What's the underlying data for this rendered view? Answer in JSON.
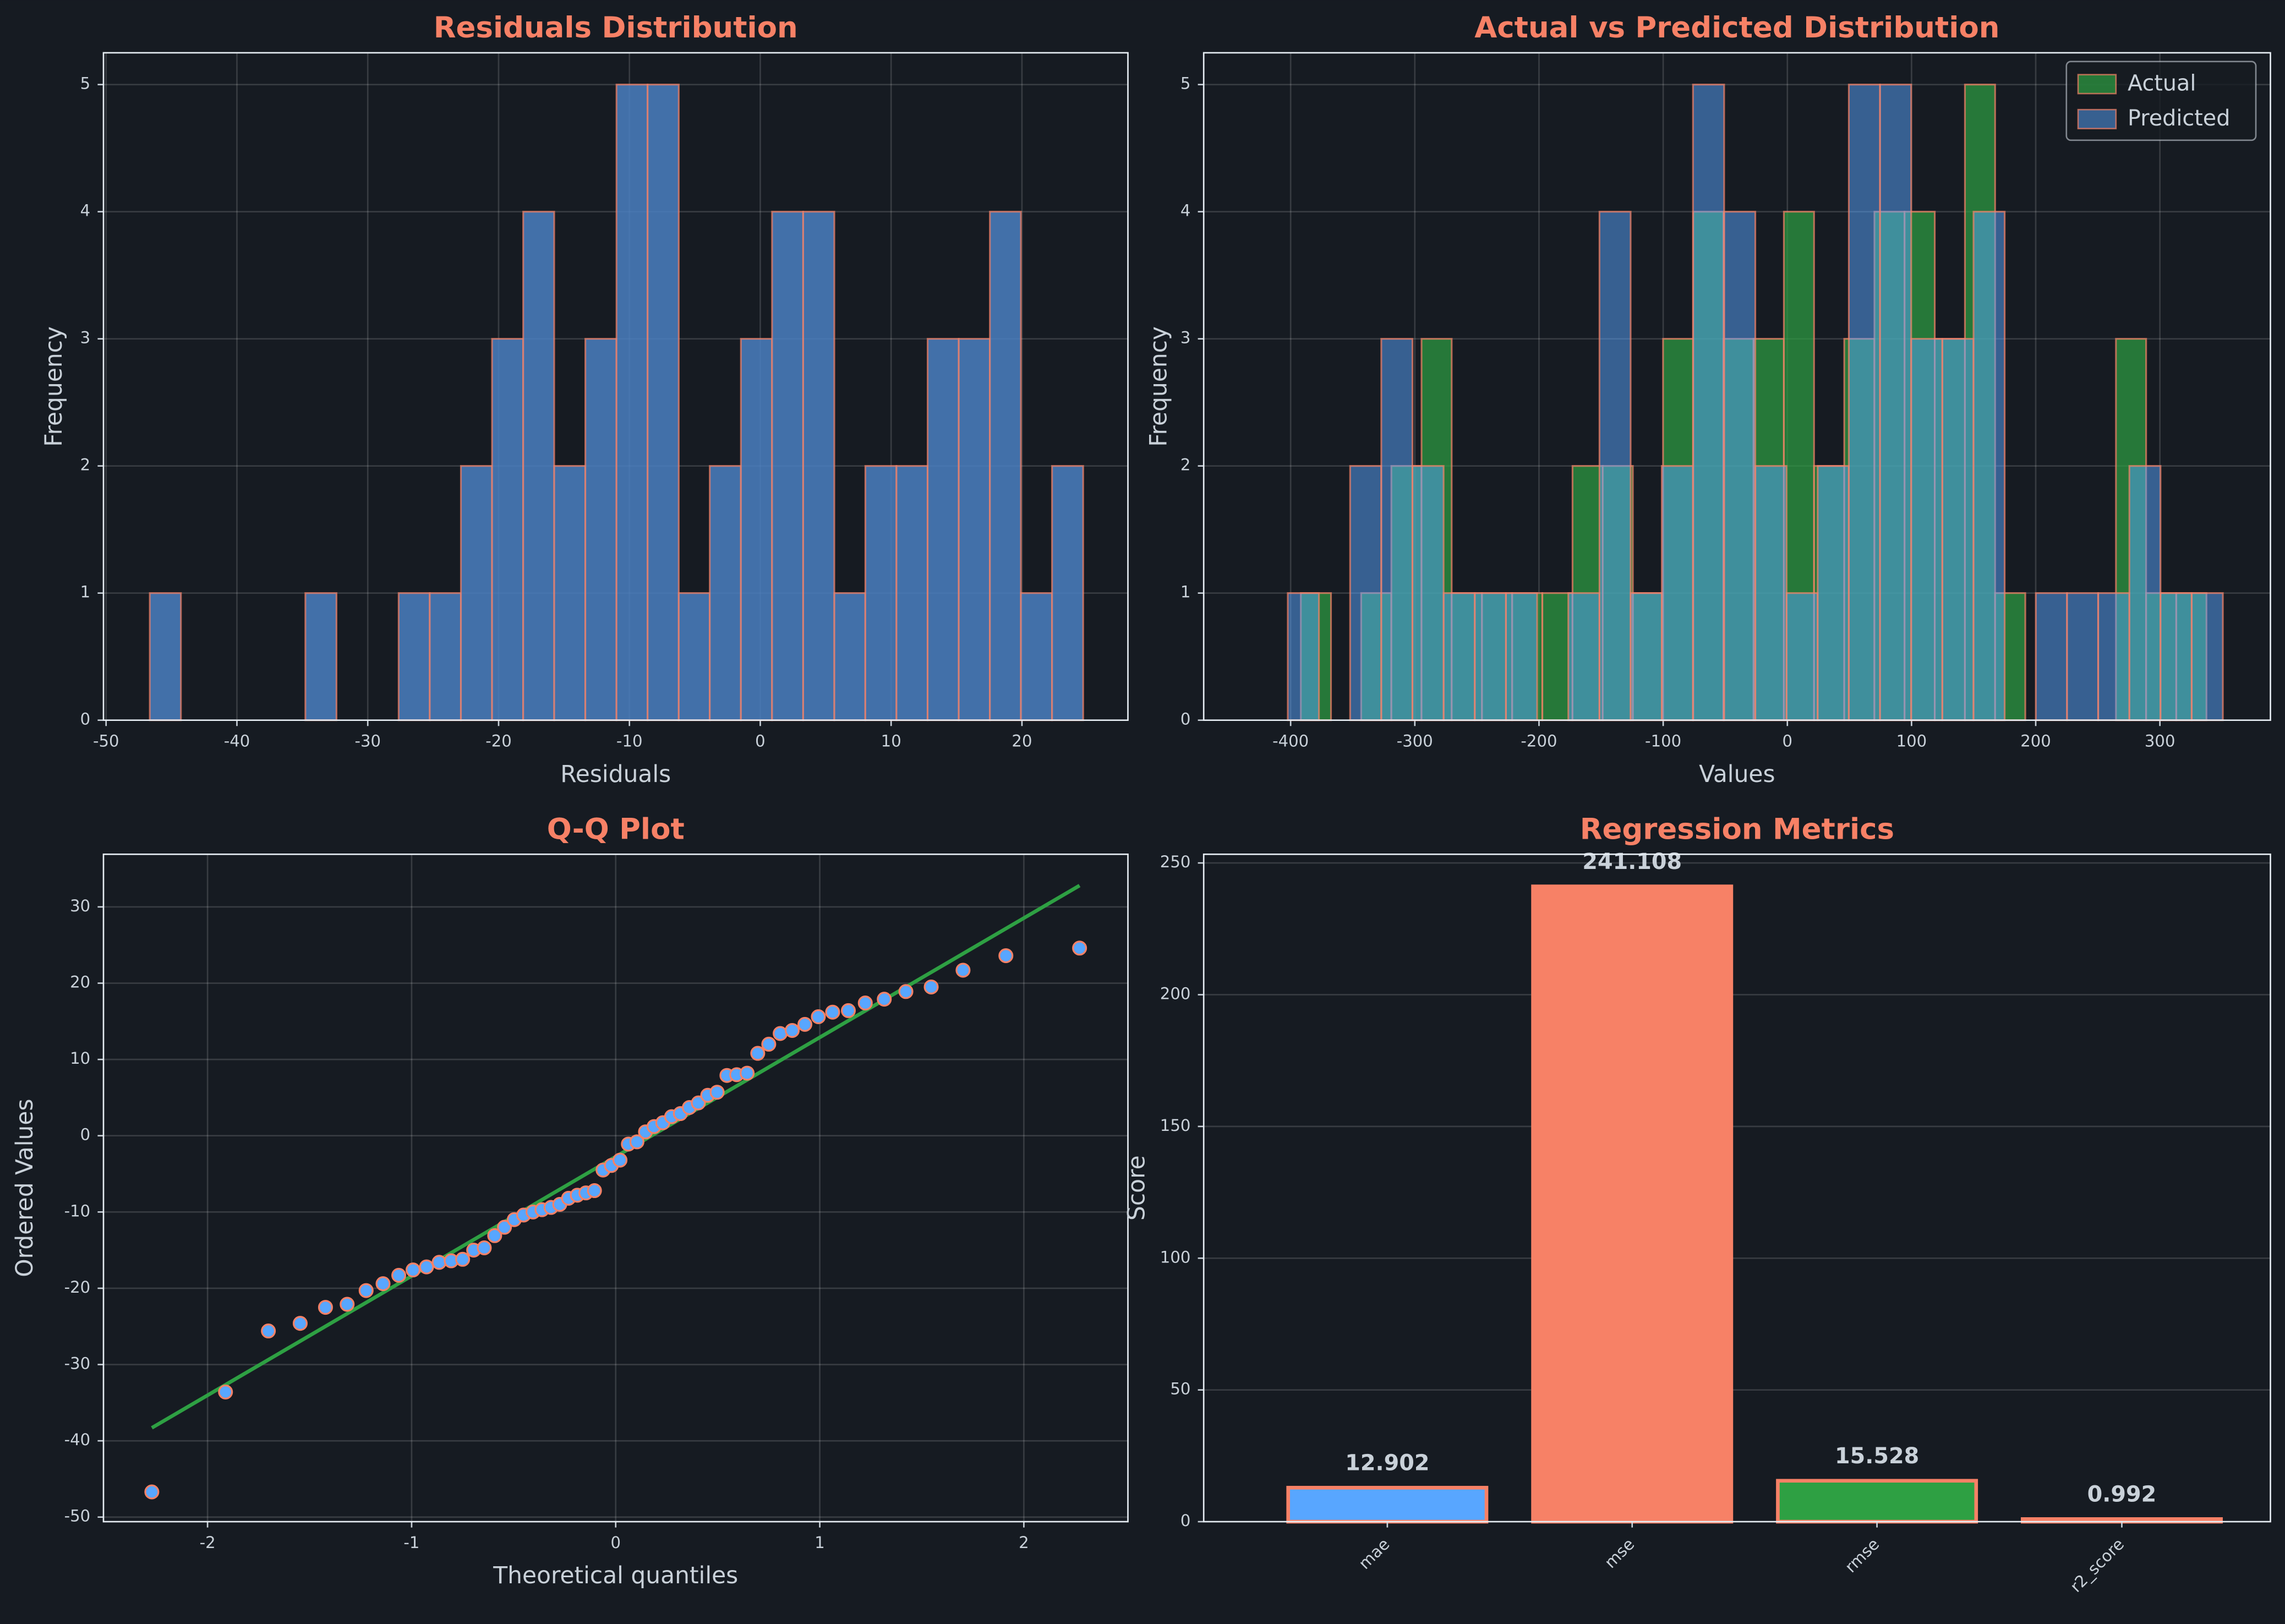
{
  "chart_data": [
    {
      "type": "histogram",
      "title": "Residuals Distribution",
      "xlabel": "Residuals",
      "ylabel": "Frequency",
      "bins": [
        -46.66,
        -44.28,
        -41.9,
        -39.53,
        -37.15,
        -34.77,
        -32.39,
        -30.01,
        -27.64,
        -25.26,
        -22.88,
        -20.5,
        -18.12,
        -15.75,
        -13.37,
        -10.99,
        -8.61,
        -6.23,
        -3.86,
        -1.48,
        0.9,
        3.28,
        5.66,
        8.03,
        10.41,
        12.79,
        15.17,
        17.55,
        19.92,
        22.3,
        24.68
      ],
      "values": [
        1,
        0,
        0,
        0,
        0,
        1,
        0,
        0,
        1,
        1,
        2,
        3,
        4,
        2,
        3,
        5,
        5,
        1,
        2,
        3,
        4,
        4,
        1,
        2,
        2,
        3,
        3,
        4,
        1,
        2
      ],
      "color": "#4a7fc1",
      "edgecolor": "#f78166",
      "xlim": [
        -50.2,
        28.1
      ],
      "xticks": [
        -50,
        -40,
        -30,
        -20,
        -10,
        0,
        10,
        20
      ],
      "ylim": [
        0,
        5.25
      ],
      "yticks": [
        0,
        1,
        2,
        3,
        4,
        5
      ],
      "grid": true
    },
    {
      "type": "histogram",
      "title": "Actual vs Predicted Distribution",
      "xlabel": "Values",
      "ylabel": "Frequency",
      "series": [
        {
          "name": "Actual",
          "color": "#2ea043",
          "bins": [
            -391.8,
            -367.5,
            -343.2,
            -318.9,
            -294.6,
            -270.3,
            -245.9,
            -221.6,
            -197.3,
            -173.0,
            -148.7,
            -124.4,
            -100.1,
            -75.8,
            -51.5,
            -27.2,
            -2.8,
            21.5,
            45.8,
            70.1,
            94.4,
            118.7,
            143.0,
            167.3,
            191.6,
            216.0,
            240.3,
            264.6,
            288.9,
            313.2,
            337.5
          ],
          "values": [
            1,
            0,
            1,
            2,
            3,
            1,
            1,
            1,
            1,
            2,
            2,
            1,
            3,
            4,
            3,
            3,
            4,
            2,
            3,
            4,
            4,
            3,
            5,
            1,
            0,
            0,
            0,
            3,
            1,
            1
          ]
        },
        {
          "name": "Predicted",
          "color": "#58a6ff",
          "bins": [
            -402.3,
            -377.2,
            -352.1,
            -327.0,
            -301.9,
            -276.8,
            -251.7,
            -226.6,
            -201.5,
            -176.4,
            -151.3,
            -126.2,
            -101.1,
            -76.0,
            -50.9,
            -25.8,
            -0.7,
            24.4,
            49.5,
            74.6,
            99.7,
            124.8,
            149.9,
            175.0,
            200.1,
            225.2,
            250.3,
            275.4,
            300.5,
            325.6,
            350.7
          ],
          "values": [
            1,
            0,
            2,
            3,
            2,
            1,
            1,
            1,
            0,
            1,
            4,
            1,
            2,
            5,
            4,
            2,
            1,
            2,
            5,
            5,
            3,
            3,
            4,
            0,
            1,
            1,
            1,
            2,
            1,
            1
          ]
        }
      ],
      "edgecolor": "#f78166",
      "legend": "upper right",
      "xlim": [
        -470,
        389
      ],
      "xticks": [
        -400,
        -300,
        -200,
        -100,
        0,
        100,
        200,
        300
      ],
      "ylim": [
        0,
        5.25
      ],
      "yticks": [
        0,
        1,
        2,
        3,
        4,
        5
      ],
      "grid": true
    },
    {
      "type": "scatter",
      "title": "Q-Q Plot",
      "xlabel": "Theoretical quantiles",
      "ylabel": "Ordered Values",
      "x": [
        -2.273,
        -1.912,
        -1.702,
        -1.546,
        -1.422,
        -1.316,
        -1.223,
        -1.14,
        -1.063,
        -0.993,
        -0.927,
        -0.865,
        -0.806,
        -0.75,
        -0.696,
        -0.644,
        -0.593,
        -0.545,
        -0.497,
        -0.451,
        -0.405,
        -0.361,
        -0.317,
        -0.274,
        -0.231,
        -0.188,
        -0.146,
        -0.104,
        -0.062,
        -0.021,
        0.021,
        0.062,
        0.104,
        0.146,
        0.188,
        0.231,
        0.274,
        0.317,
        0.361,
        0.405,
        0.451,
        0.497,
        0.545,
        0.593,
        0.644,
        0.696,
        0.75,
        0.806,
        0.865,
        0.927,
        0.993,
        1.063,
        1.14,
        1.223,
        1.316,
        1.422,
        1.546,
        1.702,
        1.912,
        2.273
      ],
      "values": [
        -46.7,
        -33.6,
        -25.6,
        -24.6,
        -22.5,
        -22.1,
        -20.3,
        -19.4,
        -18.3,
        -17.6,
        -17.2,
        -16.6,
        -16.4,
        -16.2,
        -15.0,
        -14.7,
        -13.1,
        -12.0,
        -11.0,
        -10.4,
        -10.0,
        -9.7,
        -9.4,
        -9.0,
        -8.2,
        -7.8,
        -7.5,
        -7.2,
        -4.5,
        -3.9,
        -3.2,
        -1.1,
        -0.8,
        0.5,
        1.2,
        1.7,
        2.5,
        2.9,
        3.7,
        4.3,
        5.3,
        5.7,
        7.9,
        8.0,
        8.2,
        10.8,
        12.0,
        13.4,
        13.8,
        14.6,
        15.6,
        16.2,
        16.4,
        17.4,
        17.9,
        18.9,
        19.5,
        21.7,
        23.6,
        24.6
      ],
      "color": "#58a6ff",
      "edgecolor": "#f78166",
      "line": {
        "x": [
          -2.273,
          2.273
        ],
        "values": [
          -38.3,
          32.8
        ],
        "color": "#2ea043"
      },
      "xlim": [
        -2.51,
        2.51
      ],
      "xticks": [
        -2,
        -1,
        0,
        1,
        2
      ],
      "ylim": [
        -50.6,
        36.9
      ],
      "yticks": [
        -50,
        -40,
        -30,
        -20,
        -10,
        0,
        10,
        20,
        30
      ],
      "grid": true
    },
    {
      "type": "bar",
      "title": "Regression Metrics",
      "ylabel": "Score",
      "categories": [
        "mae",
        "mse",
        "rmse",
        "r2_score"
      ],
      "values": [
        12.902,
        241.108,
        15.528,
        0.992
      ],
      "colors": [
        "#58a6ff",
        "#f78166",
        "#2ea043",
        "#f78166"
      ],
      "edgecolor": "#f78166",
      "ylim": [
        0,
        253.3
      ],
      "yticks": [
        0,
        50,
        100,
        150,
        200,
        250
      ],
      "grid": true
    }
  ]
}
